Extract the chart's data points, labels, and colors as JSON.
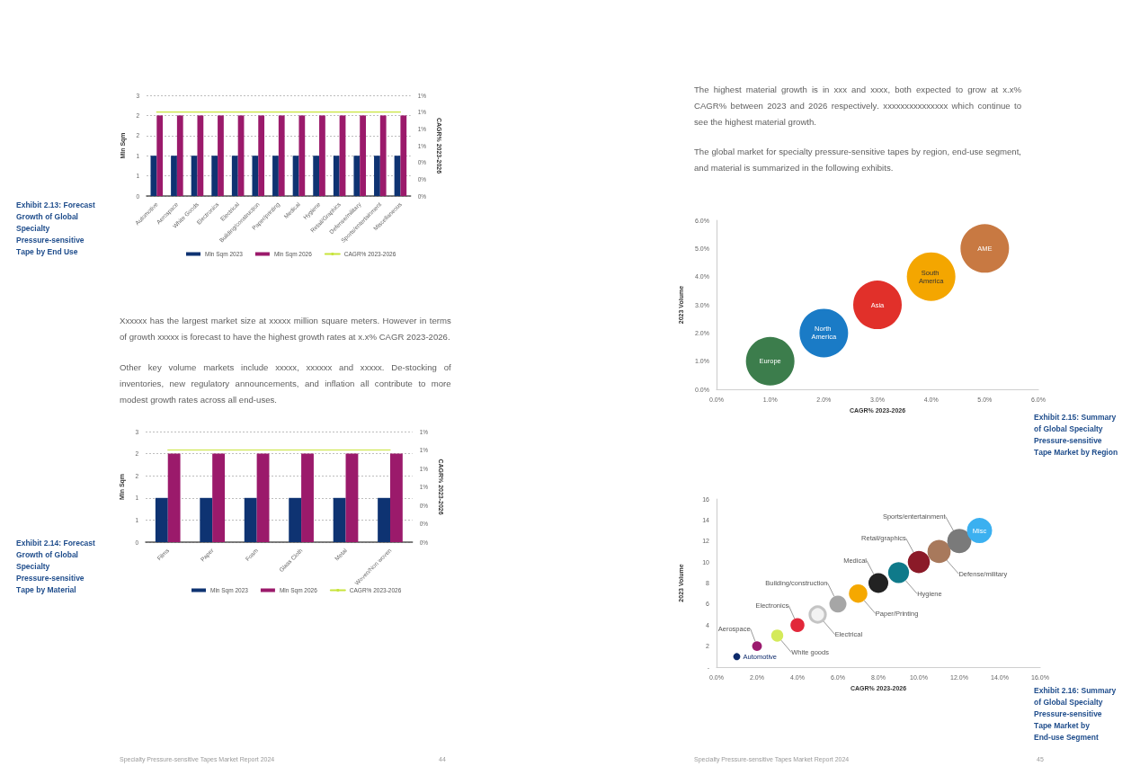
{
  "chart_data": [
    {
      "type": "bar",
      "title": "Exhibit 2.13: Forecast Growth of Global Specialty Pressure-sensitive Tape by End Use",
      "categories": [
        "Automotive",
        "Aerospace",
        "White Goods",
        "Electronics",
        "Electrical",
        "Building/construction",
        "Paper/printing",
        "Medical",
        "Hygiene",
        "Retail/Graphics",
        "Defense/military",
        "Sports/entertainment",
        "Miscellaneous"
      ],
      "series": [
        {
          "name": "Mln Sqm 2023",
          "color": "#0e3372",
          "values": [
            1.2,
            1.2,
            1.2,
            1.2,
            1.2,
            1.2,
            1.2,
            1.2,
            1.2,
            1.2,
            1.2,
            1.2,
            1.2
          ]
        },
        {
          "name": "Mln Sqm 2026",
          "color": "#9b1a6b",
          "values": [
            2.4,
            2.4,
            2.4,
            2.4,
            2.4,
            2.4,
            2.4,
            2.4,
            2.4,
            2.4,
            2.4,
            2.4,
            2.4
          ]
        },
        {
          "name": "CAGR% 2023-2026",
          "type": "line",
          "axis": "y2",
          "marker": "none",
          "color": "#c8e43c",
          "values": [
            1,
            1,
            1,
            1,
            1,
            1,
            1,
            1,
            1,
            1,
            1,
            1,
            1
          ]
        }
      ],
      "ylabel": "Mln Sqm",
      "y2label": "CAGR% 2023-2026",
      "ylim": [
        0,
        3
      ],
      "yticks": [
        0,
        {
          "value": 0.6,
          "label": "1"
        },
        {
          "value": 1.2,
          "label": "1"
        },
        {
          "value": 1.8,
          "label": "2"
        },
        {
          "value": 2.4,
          "label": "2"
        },
        3
      ],
      "y2lim": [
        0,
        1.2
      ],
      "y2ticks": [
        {
          "value": 0,
          "label": "0%"
        },
        {
          "value": 0.2,
          "label": "0%"
        },
        {
          "value": 0.4,
          "label": "0%"
        },
        {
          "value": 0.6,
          "label": "1%"
        },
        {
          "value": 0.8,
          "label": "1%"
        },
        {
          "value": 1,
          "label": "1%"
        },
        {
          "value": 1.2,
          "label": "1%"
        }
      ],
      "grid": "y",
      "legend": "bottom"
    },
    {
      "type": "bar",
      "title": "Exhibit 2.14: Forecast Growth of Global Specialty Pressure-sensitive Tape by Material",
      "categories": [
        "Films",
        "Paper",
        "Foam",
        "Glass Cloth",
        "Metal",
        "Woven/Non woven"
      ],
      "series": [
        {
          "name": "Mln Sqm 2023",
          "color": "#0e3372",
          "values": [
            1.2,
            1.2,
            1.2,
            1.2,
            1.2,
            1.2
          ]
        },
        {
          "name": "Mln Sqm 2026",
          "color": "#9b1a6b",
          "values": [
            2.4,
            2.4,
            2.4,
            2.4,
            2.4,
            2.4
          ]
        },
        {
          "name": "CAGR% 2023-2026",
          "type": "line",
          "axis": "y2",
          "marker": "none",
          "color": "#c8e43c",
          "values": [
            1,
            1,
            1,
            1,
            1,
            1
          ]
        }
      ],
      "ylabel": "Mln Sqm",
      "y2label": "CAGR% 2023-2026",
      "ylim": [
        0,
        3
      ],
      "yticks": [
        0,
        {
          "value": 0.6,
          "label": "1"
        },
        {
          "value": 1.2,
          "label": "1"
        },
        {
          "value": 1.8,
          "label": "2"
        },
        {
          "value": 2.4,
          "label": "2"
        },
        3
      ],
      "y2lim": [
        0,
        1.2
      ],
      "y2ticks": [
        {
          "value": 0,
          "label": "0%"
        },
        {
          "value": 0.2,
          "label": "0%"
        },
        {
          "value": 0.4,
          "label": "0%"
        },
        {
          "value": 0.6,
          "label": "1%"
        },
        {
          "value": 0.8,
          "label": "1%"
        },
        {
          "value": 1,
          "label": "1%"
        },
        {
          "value": 1.2,
          "label": "1%"
        }
      ],
      "grid": "y",
      "legend": "bottom",
      "annotations": [
        "Xxxxxx has the largest market size at xxxxx million square meters. However in terms of growth xxxxx is forecast to have the highest growth rates at x.x% CAGR 2023-2026.",
        "Other key volume markets include xxxxx, xxxxxx and xxxxx. De-stocking of inventories, new regulatory announcements, and inflation all contribute to more modest growth rates across all end-uses.",
        "Specialty Pressure-sensitive Tapes Market Report 2024",
        "44"
      ]
    },
    {
      "type": "bubble",
      "title": "Exhibit 2.15: Summary of Global Specialty Pressure-sensitive Tape Market by Region",
      "xlabel": "CAGR% 2023-2026",
      "ylabel": "2023 Volume",
      "series": [
        {
          "name": "Europe",
          "color": "#3c7d4c",
          "x": [
            1
          ],
          "values": [
            1
          ],
          "sizes": [
            1
          ]
        },
        {
          "name": "North America",
          "color": "#1a7bc6",
          "x": [
            2
          ],
          "values": [
            2
          ],
          "sizes": [
            1
          ]
        },
        {
          "name": "Asia",
          "color": "#e1302a",
          "x": [
            3
          ],
          "values": [
            3
          ],
          "sizes": [
            1
          ]
        },
        {
          "name": "South America",
          "color": "#f4a600",
          "x": [
            4
          ],
          "values": [
            4
          ],
          "sizes": [
            1
          ]
        },
        {
          "name": "AME",
          "color": "#c87942",
          "x": [
            5
          ],
          "values": [
            5
          ],
          "sizes": [
            1
          ]
        }
      ],
      "xlim": [
        0,
        6
      ],
      "xticks": [
        {
          "value": 0,
          "label": "0.0%"
        },
        {
          "value": 1,
          "label": "1.0%"
        },
        {
          "value": 2,
          "label": "2.0%"
        },
        {
          "value": 3,
          "label": "3.0%"
        },
        {
          "value": 4,
          "label": "4.0%"
        },
        {
          "value": 5,
          "label": "5.0%"
        },
        {
          "value": 6,
          "label": "6.0%"
        }
      ],
      "ylim": [
        0,
        6
      ],
      "yticks": [
        {
          "value": 0,
          "label": "0.0%"
        },
        {
          "value": 1,
          "label": "1.0%"
        },
        {
          "value": 2,
          "label": "2.0%"
        },
        {
          "value": 3,
          "label": "3.0%"
        },
        {
          "value": 4,
          "label": "4.0%"
        },
        {
          "value": 5,
          "label": "5.0%"
        },
        {
          "value": 6,
          "label": "6.0%"
        }
      ],
      "annotations": [
        "The highest material growth is in xxx and xxxx, both expected to grow at x.x% CAGR% between 2023 and 2026 respectively. xxxxxxxxxxxxxxx which continue to see the highest material growth.",
        "The global market for specialty pressure-sensitive tapes by region, end-use segment, and material is summarized in the following exhibits."
      ]
    },
    {
      "type": "bubble",
      "title": "Exhibit 2.16: Summary of Global Specialty Pressure-sensitive Tape Market by End-use Segment",
      "xlabel": "CAGR% 2023-2026",
      "ylabel": "2023 Volume",
      "series": [
        {
          "name": "Automotive",
          "color": "#0d2a6b",
          "x": [
            1
          ],
          "values": [
            1
          ],
          "sizes": [
            0.08
          ]
        },
        {
          "name": "Aerospace",
          "color": "#9b1a6e",
          "x": [
            2
          ],
          "values": [
            2
          ],
          "sizes": [
            0.15
          ]
        },
        {
          "name": "White goods",
          "color": "#d4ea5a",
          "x": [
            3
          ],
          "values": [
            3
          ],
          "sizes": [
            0.23
          ]
        },
        {
          "name": "Electronics",
          "color": "#e2283a",
          "x": [
            4
          ],
          "values": [
            4
          ],
          "sizes": [
            0.31
          ]
        },
        {
          "name": "Electrical",
          "color": "#f2f2f2",
          "x": [
            5
          ],
          "values": [
            5
          ],
          "sizes": [
            0.38
          ]
        },
        {
          "name": "Building/construction",
          "color": "#a6a6a6",
          "x": [
            6
          ],
          "values": [
            6
          ],
          "sizes": [
            0.46
          ]
        },
        {
          "name": "Paper/Printing",
          "color": "#f5a800",
          "x": [
            7
          ],
          "values": [
            7
          ],
          "sizes": [
            0.54
          ]
        },
        {
          "name": "Medical",
          "color": "#222222",
          "x": [
            8
          ],
          "values": [
            8
          ],
          "sizes": [
            0.62
          ]
        },
        {
          "name": "Hygiene",
          "color": "#0f7a8a",
          "x": [
            9
          ],
          "values": [
            9
          ],
          "sizes": [
            0.69
          ]
        },
        {
          "name": "Retail/graphics",
          "color": "#8b1a28",
          "x": [
            10
          ],
          "values": [
            10
          ],
          "sizes": [
            0.77
          ]
        },
        {
          "name": "Defense/military",
          "color": "#a8795c",
          "x": [
            11
          ],
          "values": [
            11
          ],
          "sizes": [
            0.85
          ]
        },
        {
          "name": "Sports/entertainment",
          "color": "#7a7a7a",
          "x": [
            12
          ],
          "values": [
            12
          ],
          "sizes": [
            0.92
          ]
        },
        {
          "name": "Misc",
          "color": "#3bb0f0",
          "x": [
            13
          ],
          "values": [
            13
          ],
          "sizes": [
            1
          ]
        }
      ],
      "xlim": [
        0,
        16
      ],
      "xticks": [
        {
          "value": 0,
          "label": "0.0%"
        },
        {
          "value": 2,
          "label": "2.0%"
        },
        {
          "value": 4,
          "label": "4.0%"
        },
        {
          "value": 6,
          "label": "6.0%"
        },
        {
          "value": 8,
          "label": "8.0%"
        },
        {
          "value": 10,
          "label": "10.0%"
        },
        {
          "value": 12,
          "label": "12.0%"
        },
        {
          "value": 14,
          "label": "14.0%"
        },
        {
          "value": 16,
          "label": "16.0%"
        }
      ],
      "ylim": [
        0,
        16
      ],
      "yticks": [
        {
          "value": 0,
          "label": "-"
        },
        2,
        4,
        6,
        8,
        10,
        12,
        14,
        16
      ],
      "annotations": [
        "Specialty Pressure-sensitive Tapes Market Report 2024",
        "45"
      ]
    }
  ]
}
